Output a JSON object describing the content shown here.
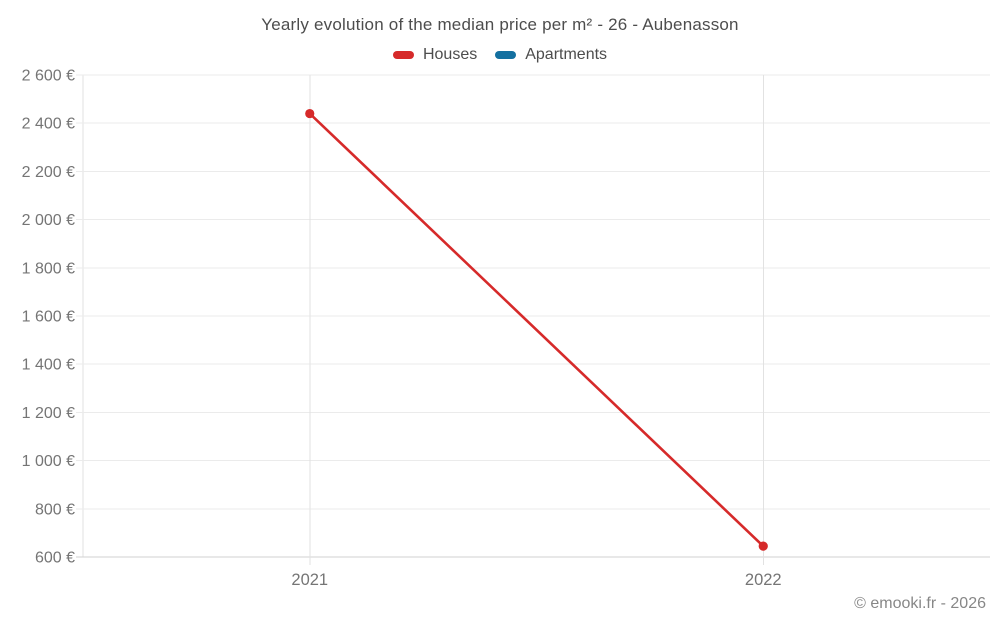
{
  "watermark": "© emooki.fr - 2026",
  "chart_data": {
    "type": "line",
    "title": "Yearly evolution of the median price per m² - 26 - Aubenasson",
    "xlabel": "",
    "ylabel": "",
    "categories": [
      "2021",
      "2022"
    ],
    "series": [
      {
        "name": "Houses",
        "color": "#d62a2a",
        "values": [
          2440,
          645
        ]
      },
      {
        "name": "Apartments",
        "color": "#1470a0",
        "values": [
          null,
          null
        ]
      }
    ],
    "ylim": [
      600,
      2600
    ],
    "y_tick_step": 200,
    "y_tick_labels": [
      "600 €",
      "800 €",
      "1 000 €",
      "1 200 €",
      "1 400 €",
      "1 600 €",
      "1 800 €",
      "2 000 €",
      "2 200 €",
      "2 400 €",
      "2 600 €"
    ],
    "grid": true,
    "legend_position": "top",
    "colors": {
      "title_text": "#4d4d4d",
      "tick_text": "#757575",
      "gridline": "#ebebeb",
      "axis_line": "#d2d2d2",
      "vertical_gridline": "#e2e2e2",
      "background": "#ffffff"
    }
  }
}
